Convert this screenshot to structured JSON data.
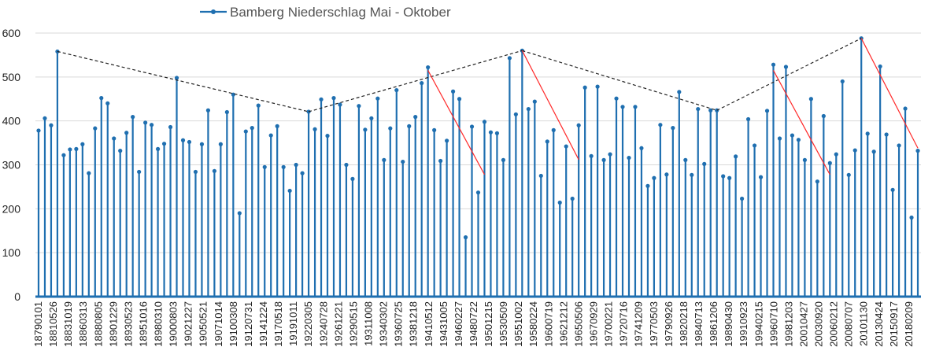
{
  "chart_data": {
    "type": "bar",
    "style": "stem-plot",
    "legend": {
      "label": "Bamberg Niederschlag Mai - Oktober",
      "position": "top"
    },
    "ylim": [
      0,
      600
    ],
    "yticks": [
      0,
      100,
      200,
      300,
      400,
      500,
      600
    ],
    "grid": true,
    "xlabels": [
      "18790101",
      "18810526",
      "18831019",
      "18860313",
      "18880805",
      "18901229",
      "18930523",
      "18951016",
      "18980310",
      "19000803",
      "19021227",
      "19050521",
      "19071014",
      "19100308",
      "19120731",
      "19141224",
      "19170518",
      "19191011",
      "19220305",
      "19240728",
      "19261221",
      "19290515",
      "19311008",
      "19340302",
      "19360725",
      "19381218",
      "19410512",
      "19431005",
      "19460227",
      "19480722",
      "19501215",
      "19530509",
      "19551002",
      "19580224",
      "19600719",
      "19621212",
      "19650506",
      "19670929",
      "19700221",
      "19720716",
      "19741209",
      "19770503",
      "19790926",
      "19820218",
      "19840713",
      "19861206",
      "19890430",
      "19910923",
      "19940215",
      "19960710",
      "19981203",
      "20010427",
      "20030920",
      "20060212",
      "20080707",
      "20101130",
      "20130424",
      "20150917",
      "20180209"
    ],
    "series": [
      {
        "name": "Bamberg Niederschlag Mai - Oktober",
        "color": "#1f6fb0",
        "values": [
          378,
          406,
          390,
          558,
          322,
          335,
          336,
          347,
          281,
          383,
          452,
          440,
          360,
          332,
          373,
          409,
          284,
          396,
          391,
          336,
          348,
          386,
          498,
          356,
          352,
          284,
          347,
          424,
          286,
          347,
          420,
          460,
          190,
          376,
          384,
          435,
          295,
          367,
          388,
          295,
          241,
          300,
          281,
          421,
          381,
          449,
          366,
          452,
          437,
          300,
          268,
          434,
          380,
          406,
          451,
          311,
          383,
          470,
          307,
          388,
          409,
          486,
          522,
          379,
          309,
          355,
          467,
          450,
          135,
          387,
          237,
          398,
          374,
          372,
          311,
          543,
          415,
          560,
          427,
          444,
          275,
          353,
          379,
          214,
          342,
          223,
          390,
          476,
          320,
          478,
          311,
          324,
          451,
          432,
          316,
          432,
          338,
          252,
          270,
          391,
          278,
          384,
          466,
          311,
          277,
          427,
          302,
          424,
          424,
          274,
          270,
          319,
          223,
          404,
          344,
          272,
          423,
          528,
          360,
          523,
          367,
          357,
          311,
          450,
          262,
          411,
          304,
          324,
          490,
          277,
          333,
          588,
          371,
          330,
          524,
          369,
          243,
          344,
          428,
          180,
          332
        ]
      }
    ],
    "trend_lines": [
      {
        "color": "#222222",
        "style": "dashed",
        "points": [
          [
            3,
            558
          ],
          [
            43,
            421
          ]
        ]
      },
      {
        "color": "#222222",
        "style": "dashed",
        "points": [
          [
            43,
            421
          ],
          [
            77,
            560
          ]
        ]
      },
      {
        "color": "#222222",
        "style": "dashed",
        "points": [
          [
            77,
            560
          ],
          [
            108,
            424
          ]
        ]
      },
      {
        "color": "#222222",
        "style": "dashed",
        "points": [
          [
            108,
            424
          ],
          [
            131,
            588
          ]
        ]
      },
      {
        "color": "#ff2a2a",
        "style": "solid",
        "points": [
          [
            62,
            515
          ],
          [
            71,
            278
          ]
        ]
      },
      {
        "color": "#ff2a2a",
        "style": "solid",
        "points": [
          [
            77,
            560
          ],
          [
            86,
            312
          ]
        ]
      },
      {
        "color": "#ff2a2a",
        "style": "solid",
        "points": [
          [
            117,
            515
          ],
          [
            126,
            278
          ]
        ]
      },
      {
        "color": "#ff2a2a",
        "style": "solid",
        "points": [
          [
            131,
            588
          ],
          [
            140,
            338
          ]
        ]
      }
    ]
  }
}
